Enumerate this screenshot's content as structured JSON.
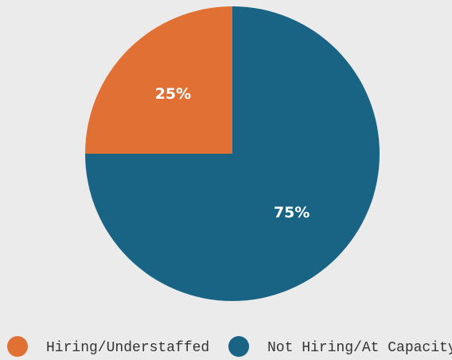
{
  "chart_data": {
    "type": "pie",
    "categories": [
      "Hiring/Understaffed",
      "Not Hiring/At Capacity"
    ],
    "values": [
      25,
      75
    ],
    "value_labels": [
      "25%",
      "75%"
    ],
    "colors": [
      "#e07034",
      "#196384"
    ]
  }
}
